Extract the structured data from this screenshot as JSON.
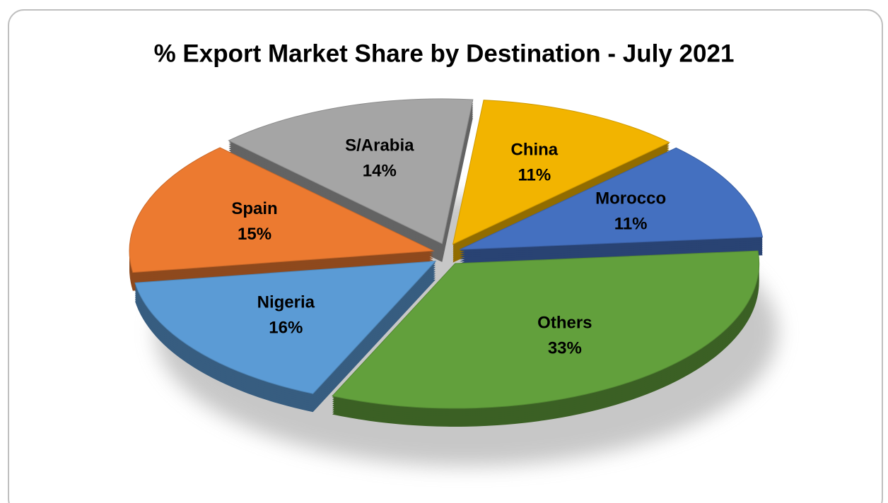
{
  "chart_data": {
    "type": "pie",
    "title": "% Export Market Share by Destination - July 2021",
    "categories": [
      "Others",
      "Nigeria",
      "Spain",
      "S/Arabia",
      "China",
      "Morocco"
    ],
    "values": [
      33,
      16,
      15,
      14,
      11,
      11
    ],
    "value_labels": [
      "33%",
      "16%",
      "15%",
      "14%",
      "11%",
      "11%"
    ],
    "colors": [
      "#62a03c",
      "#5b9bd5",
      "#ec7a30",
      "#a5a5a5",
      "#f2b400",
      "#4470c0"
    ]
  }
}
